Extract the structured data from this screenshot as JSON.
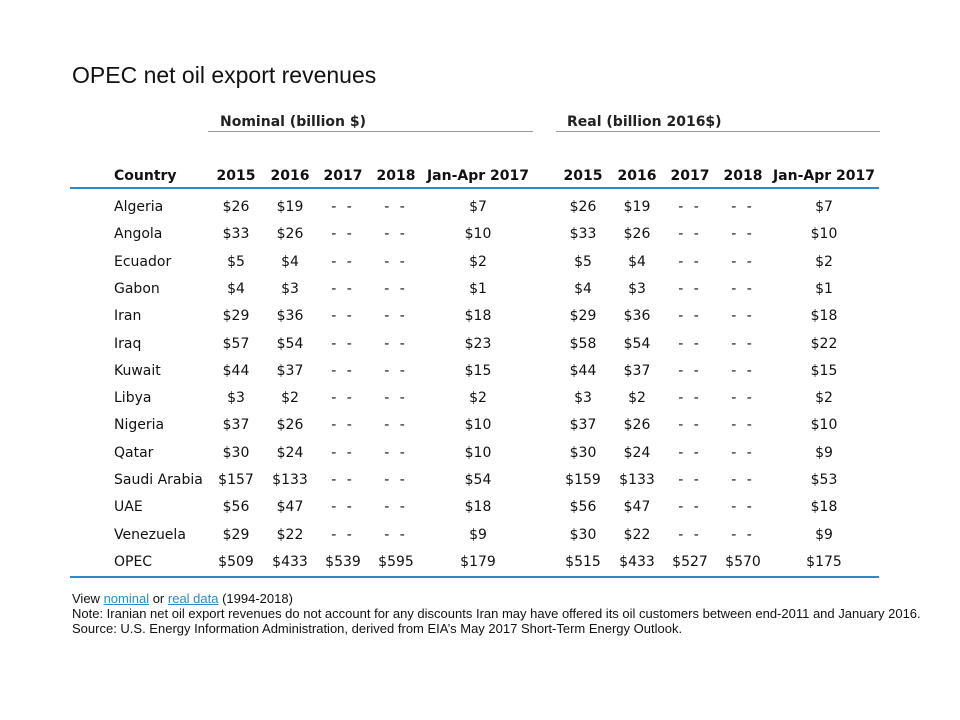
{
  "title": "OPEC net oil export revenues",
  "groups": {
    "nominal": "Nominal (billion $)",
    "real": "Real (billion 2016$)"
  },
  "header": {
    "country": "Country",
    "nominal": [
      "2015",
      "2016",
      "2017",
      "2018",
      "Jan-Apr 2017"
    ],
    "real": [
      "2015",
      "2016",
      "2017",
      "2018",
      "Jan-Apr 2017"
    ]
  },
  "rows": [
    {
      "country": "Algeria",
      "nominal": [
        "$26",
        "$19",
        "- -",
        "- -",
        "$7"
      ],
      "real": [
        "$26",
        "$19",
        "- -",
        "- -",
        "$7"
      ]
    },
    {
      "country": "Angola",
      "nominal": [
        "$33",
        "$26",
        "- -",
        "- -",
        "$10"
      ],
      "real": [
        "$33",
        "$26",
        "- -",
        "- -",
        "$10"
      ]
    },
    {
      "country": "Ecuador",
      "nominal": [
        "$5",
        "$4",
        "- -",
        "- -",
        "$2"
      ],
      "real": [
        "$5",
        "$4",
        "- -",
        "- -",
        "$2"
      ]
    },
    {
      "country": "Gabon",
      "nominal": [
        "$4",
        "$3",
        "- -",
        "- -",
        "$1"
      ],
      "real": [
        "$4",
        "$3",
        "- -",
        "- -",
        "$1"
      ]
    },
    {
      "country": "Iran",
      "nominal": [
        "$29",
        "$36",
        "- -",
        "- -",
        "$18"
      ],
      "real": [
        "$29",
        "$36",
        "- -",
        "- -",
        "$18"
      ]
    },
    {
      "country": "Iraq",
      "nominal": [
        "$57",
        "$54",
        "- -",
        "- -",
        "$23"
      ],
      "real": [
        "$58",
        "$54",
        "- -",
        "- -",
        "$22"
      ]
    },
    {
      "country": "Kuwait",
      "nominal": [
        "$44",
        "$37",
        "- -",
        "- -",
        "$15"
      ],
      "real": [
        "$44",
        "$37",
        "- -",
        "- -",
        "$15"
      ]
    },
    {
      "country": "Libya",
      "nominal": [
        "$3",
        "$2",
        "- -",
        "- -",
        "$2"
      ],
      "real": [
        "$3",
        "$2",
        "- -",
        "- -",
        "$2"
      ]
    },
    {
      "country": "Nigeria",
      "nominal": [
        "$37",
        "$26",
        "- -",
        "- -",
        "$10"
      ],
      "real": [
        "$37",
        "$26",
        "- -",
        "- -",
        "$10"
      ]
    },
    {
      "country": "Qatar",
      "nominal": [
        "$30",
        "$24",
        "- -",
        "- -",
        "$10"
      ],
      "real": [
        "$30",
        "$24",
        "- -",
        "- -",
        "$9"
      ]
    },
    {
      "country": "Saudi Arabia",
      "nominal": [
        "$157",
        "$133",
        "- -",
        "- -",
        "$54"
      ],
      "real": [
        "$159",
        "$133",
        "- -",
        "- -",
        "$53"
      ]
    },
    {
      "country": "UAE",
      "nominal": [
        "$56",
        "$47",
        "- -",
        "- -",
        "$18"
      ],
      "real": [
        "$56",
        "$47",
        "- -",
        "- -",
        "$18"
      ]
    },
    {
      "country": "Venezuela",
      "nominal": [
        "$29",
        "$22",
        "- -",
        "- -",
        "$9"
      ],
      "real": [
        "$30",
        "$22",
        "- -",
        "- -",
        "$9"
      ]
    },
    {
      "country": "OPEC",
      "nominal": [
        "$509",
        "$433",
        "$539",
        "$595",
        "$179"
      ],
      "real": [
        "$515",
        "$433",
        "$527",
        "$570",
        "$175"
      ]
    }
  ],
  "notes": {
    "view_prefix": "View ",
    "nominal_link": "nominal",
    "or_text": " or ",
    "real_link": "real data",
    "range_text": " (1994-2018)",
    "note": "Note: Iranian net oil export revenues do not account for any discounts Iran may have offered its oil customers between end-2011 and January 2016.",
    "source": "Source: U.S. Energy Information Administration, derived from EIA’s May 2017 Short-Term Energy Outlook."
  },
  "colors": {
    "accent": "#2a8bc7",
    "group_rule": "#9a9a9a"
  }
}
